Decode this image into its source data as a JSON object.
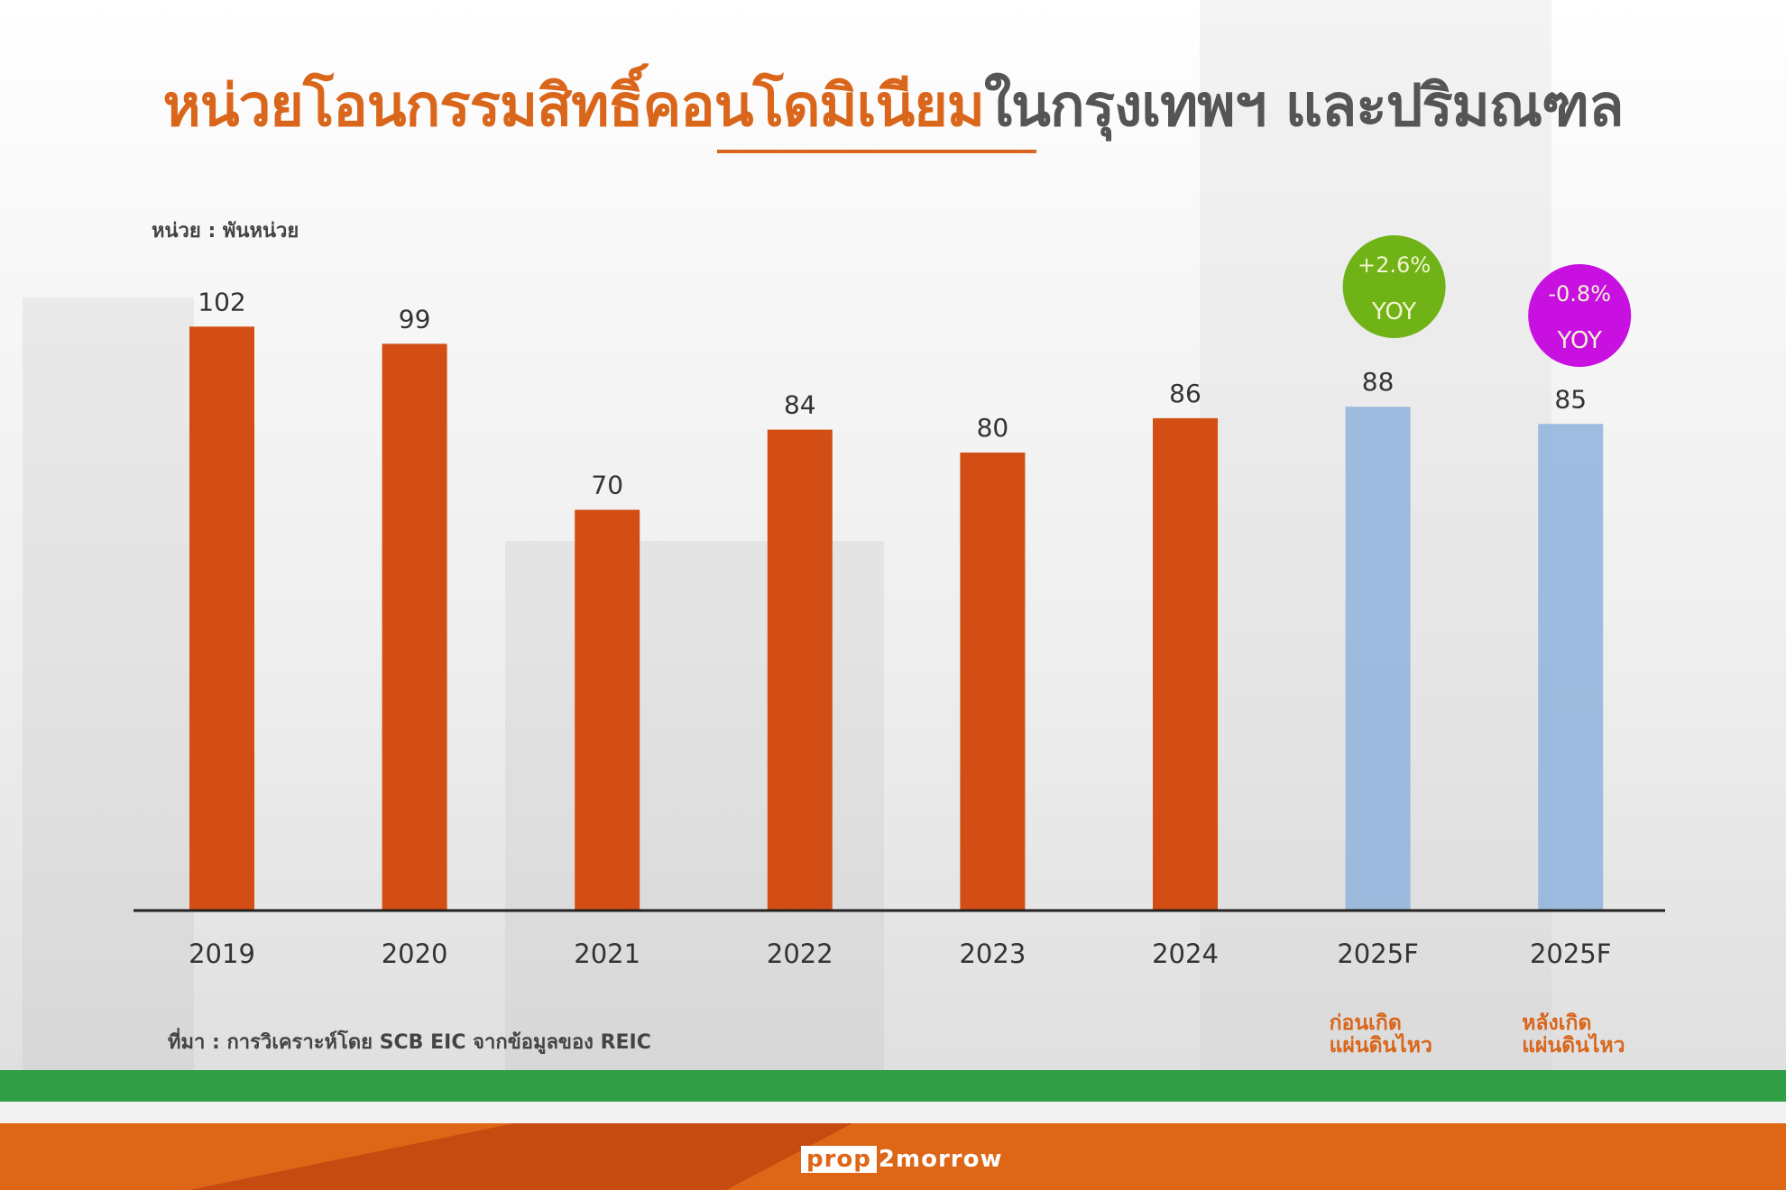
{
  "title": {
    "highlight": "หน่วยโอนกรรมสิทธิ์คอนโดมิเนียม",
    "rest": "ในกรุงเทพฯ และปริมณฑล"
  },
  "unit_label": "หน่วย : พันหน่วย",
  "source": "ที่มา : การวิเคราะห์โดย SCB EIC จากข้อมูลของ REIC",
  "logo": {
    "part1": "prop",
    "part2": "2morrow"
  },
  "colors": {
    "actual": "#d24e14",
    "forecast": "#8fb3dc",
    "accent": "#d9661b",
    "green_badge": "#6fb317",
    "purple_badge": "#c811e0"
  },
  "chart_data": {
    "type": "bar",
    "title": "หน่วยโอนกรรมสิทธิ์คอนโดมิเนียมในกรุงเทพฯ และปริมณฑล",
    "ylabel": "หน่วย : พันหน่วย",
    "ylim": [
      0,
      110
    ],
    "grid": false,
    "categories": [
      "2019",
      "2020",
      "2021",
      "2022",
      "2023",
      "2024",
      "2025F",
      "2025F"
    ],
    "sublabels": [
      "",
      "",
      "",
      "",
      "",
      "",
      "ก่อนเกิด\nแผ่นดินไหว",
      "หลังเกิด\nแผ่นดินไหว"
    ],
    "values": [
      102,
      99,
      70,
      84,
      80,
      86,
      88,
      85
    ],
    "forecast": [
      false,
      false,
      false,
      false,
      false,
      false,
      true,
      true
    ],
    "annotations": [
      {
        "index": 6,
        "line1": "+2.6%",
        "line2": "YOY",
        "color": "#6fb317"
      },
      {
        "index": 7,
        "line1": "-0.8%",
        "line2": "YOY",
        "color": "#c811e0"
      }
    ]
  }
}
